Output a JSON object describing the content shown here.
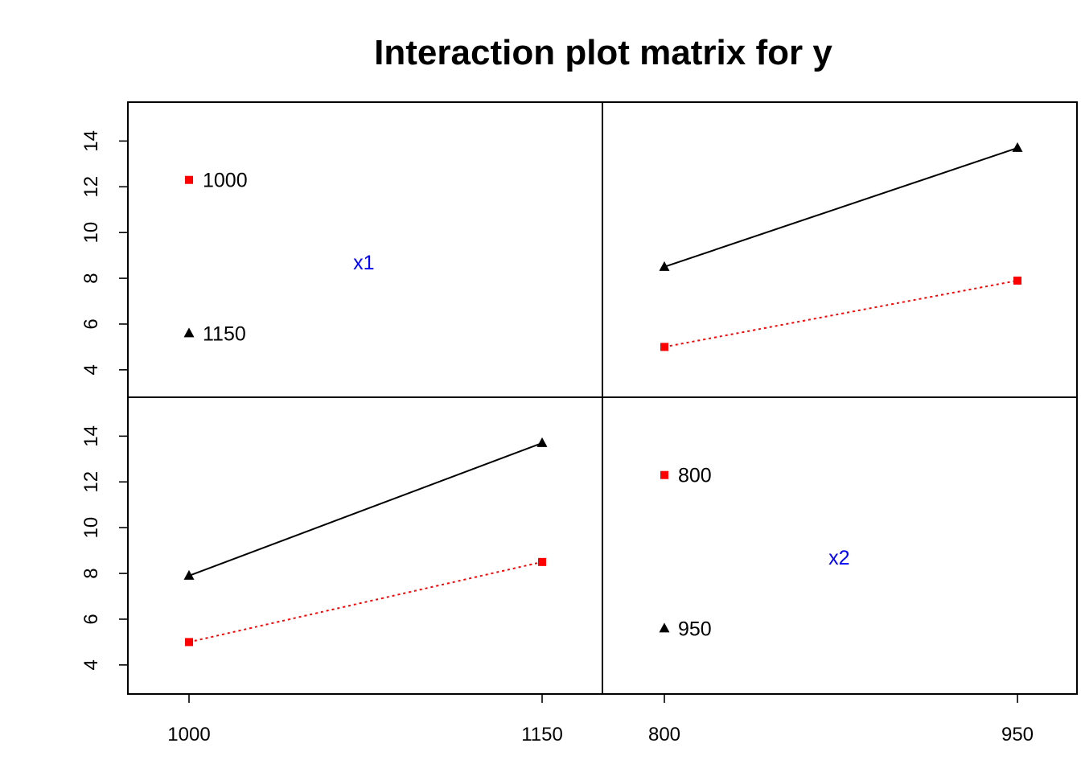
{
  "chart_data": {
    "type": "line",
    "title": "Interaction plot matrix for y",
    "ylim": [
      2.8,
      15.7
    ],
    "y_ticks": [
      4,
      6,
      8,
      10,
      12,
      14
    ],
    "colors": {
      "black": "#000000",
      "red": "#ff0000",
      "label_blue": "#0000ff"
    },
    "factors": [
      {
        "name": "x1",
        "levels": [
          "1000",
          "1150"
        ]
      },
      {
        "name": "x2",
        "levels": [
          "800",
          "950"
        ]
      }
    ],
    "diagonal": [
      {
        "factor": "x1",
        "levels": [
          {
            "label": "1000",
            "y": 12.3,
            "color": "#ff0000",
            "marker": "square"
          },
          {
            "label": "1150",
            "y": 5.6,
            "color": "#000000",
            "marker": "triangle"
          }
        ]
      },
      {
        "factor": "x2",
        "levels": [
          {
            "label": "800",
            "y": 12.3,
            "color": "#ff0000",
            "marker": "square"
          },
          {
            "label": "950",
            "y": 5.6,
            "color": "#000000",
            "marker": "triangle"
          }
        ]
      }
    ],
    "interactions": [
      {
        "position": "top-right",
        "x_factor": "x2",
        "trace_factor": "x1",
        "x": [
          "800",
          "950"
        ],
        "series": [
          {
            "values": [
              8.5,
              13.7
            ],
            "color": "#000000",
            "marker": "triangle",
            "linestyle": "solid"
          },
          {
            "values": [
              5.0,
              7.9
            ],
            "color": "#ff0000",
            "marker": "square",
            "linestyle": "dotted"
          }
        ]
      },
      {
        "position": "bottom-left",
        "x_factor": "x1",
        "trace_factor": "x2",
        "x": [
          "1000",
          "1150"
        ],
        "series": [
          {
            "values": [
              7.9,
              13.7
            ],
            "color": "#000000",
            "marker": "triangle",
            "linestyle": "solid"
          },
          {
            "values": [
              5.0,
              8.5
            ],
            "color": "#ff0000",
            "marker": "square",
            "linestyle": "dotted"
          }
        ]
      }
    ]
  }
}
